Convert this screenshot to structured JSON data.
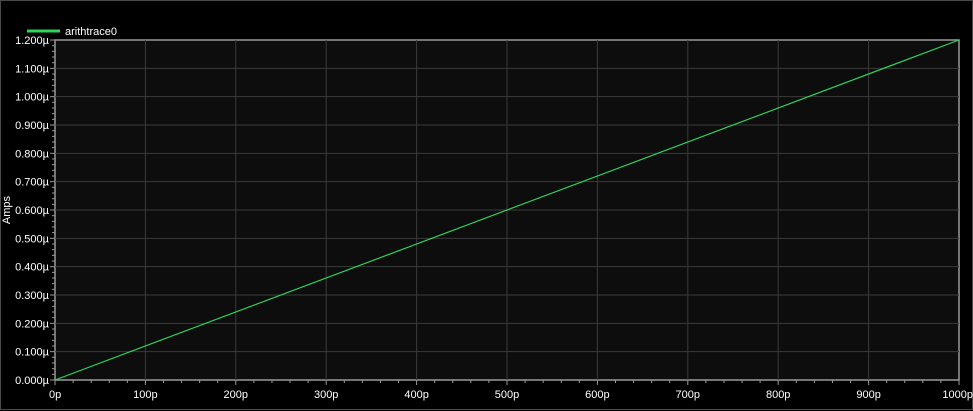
{
  "chart_data": {
    "type": "line",
    "title": "",
    "xlabel": "",
    "ylabel": "Amps",
    "x_unit_suffix": "p",
    "y_unit_suffix": "µ",
    "xlim": [
      0,
      1000
    ],
    "ylim": [
      0,
      1.2
    ],
    "x_ticks": [
      "0p",
      "100p",
      "200p",
      "300p",
      "400p",
      "500p",
      "600p",
      "700p",
      "800p",
      "900p",
      "1000p"
    ],
    "y_ticks": [
      "0.000µ",
      "0.100µ",
      "0.200µ",
      "0.300µ",
      "0.400µ",
      "0.500µ",
      "0.600µ",
      "0.700µ",
      "0.800µ",
      "0.900µ",
      "1.000µ",
      "1.100µ",
      "1.200µ"
    ],
    "grid": true,
    "legend_position": "top-left",
    "series": [
      {
        "name": "arithtrace0",
        "color": "#2ed35a",
        "x": [
          0,
          1000
        ],
        "y": [
          0,
          1.2
        ]
      }
    ]
  },
  "colors": {
    "background": "#000000",
    "plot_background": "#0d0d0d",
    "grid": "#3a3a3a",
    "axis": "#9a9a9a",
    "text": "#ffffff"
  }
}
